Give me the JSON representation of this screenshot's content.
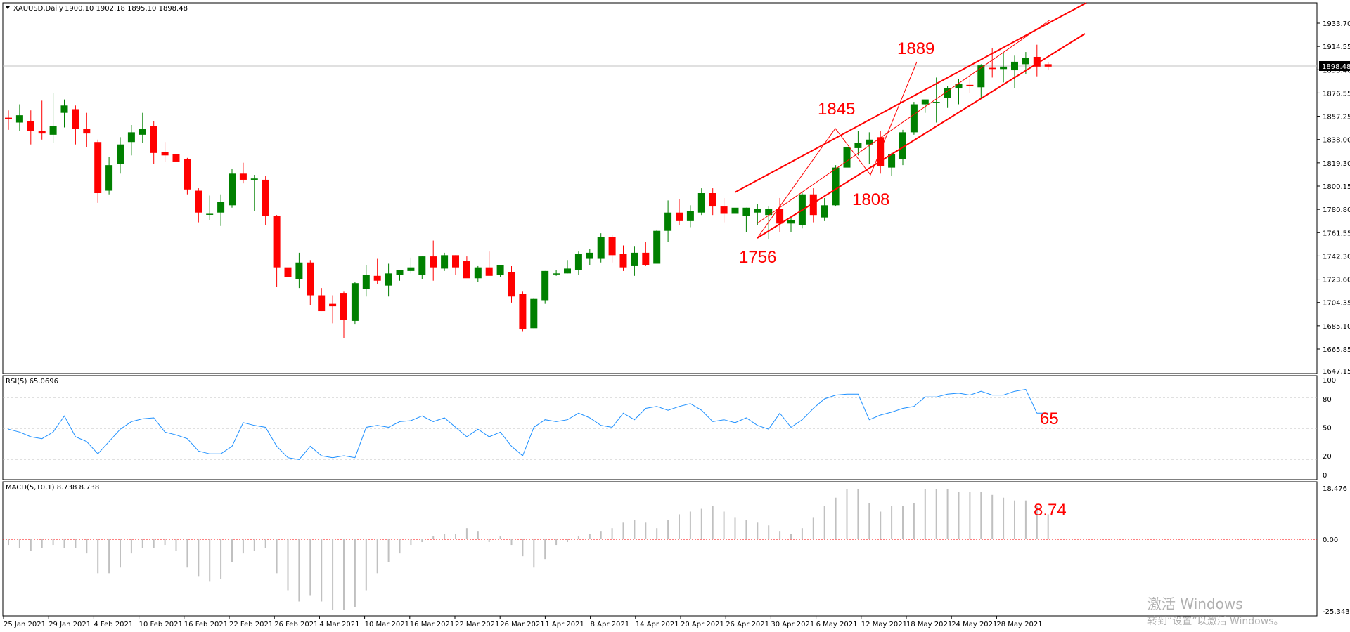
{
  "header": {
    "symbol": "XAUUSD,Daily",
    "ohlc": "1900.10 1902.18 1895.10 1898.48",
    "rsi_label": "RSI(5) 65.0696",
    "macd_label": "MACD(5,10,1) 8.738 8.738"
  },
  "price_axis": {
    "ticks": [
      "1933.70",
      "1914.55",
      "1895.40",
      "1876.55",
      "1857.25",
      "1838.00",
      "1819.30",
      "1800.15",
      "1780.80",
      "1761.55",
      "1742.30",
      "1723.60",
      "1704.35",
      "1685.10",
      "1665.85",
      "1647.15"
    ],
    "current_price": "1898.48"
  },
  "rsi_axis": {
    "ticks": [
      "100",
      "80",
      "50",
      "20",
      "0"
    ]
  },
  "macd_axis": {
    "ticks": [
      "18.476",
      "0.00",
      "-25.343"
    ]
  },
  "date_axis": {
    "ticks": [
      "25 Jan 2021",
      "29 Jan 2021",
      "4 Feb 2021",
      "10 Feb 2021",
      "16 Feb 2021",
      "22 Feb 2021",
      "26 Feb 2021",
      "4 Mar 2021",
      "10 Mar 2021",
      "16 Mar 2021",
      "22 Mar 2021",
      "26 Mar 2021",
      "1 Apr 2021",
      "8 Apr 2021",
      "14 Apr 2021",
      "20 Apr 2021",
      "26 Apr 2021",
      "30 Apr 2021",
      "6 May 2021",
      "12 May 2021",
      "18 May 2021",
      "24 May 2021",
      "28 May 2021"
    ]
  },
  "annotations": {
    "p1889": "1889",
    "p1845": "1845",
    "p1808": "1808",
    "p1756": "1756",
    "rsi_value": "65",
    "macd_value": "8.74"
  },
  "watermark": {
    "line1": "激活 Windows",
    "line2": "转到“设置”以激活 Windows。"
  },
  "colors": {
    "bull": "#008000",
    "bear": "#ff0000",
    "rsi_line": "#1e90ff",
    "macd_bar": "#c0c0c0",
    "channel": "#ff0000",
    "annotation": "#ff0000"
  },
  "chart_data": {
    "type": "candlestick",
    "symbol": "XAUUSD",
    "timeframe": "Daily",
    "ylim": [
      1647.15,
      1943.0
    ],
    "candles": [
      {
        "o": 1856,
        "h": 1862,
        "l": 1846,
        "c": 1855
      },
      {
        "o": 1852,
        "h": 1867,
        "l": 1845,
        "c": 1858
      },
      {
        "o": 1853,
        "h": 1862,
        "l": 1834,
        "c": 1845
      },
      {
        "o": 1845,
        "h": 1870,
        "l": 1838,
        "c": 1843
      },
      {
        "o": 1842,
        "h": 1876,
        "l": 1835,
        "c": 1849
      },
      {
        "o": 1860,
        "h": 1871,
        "l": 1848,
        "c": 1866
      },
      {
        "o": 1863,
        "h": 1866,
        "l": 1834,
        "c": 1847
      },
      {
        "o": 1847,
        "h": 1860,
        "l": 1832,
        "c": 1843
      },
      {
        "o": 1836,
        "h": 1838,
        "l": 1786,
        "c": 1794
      },
      {
        "o": 1796,
        "h": 1824,
        "l": 1793,
        "c": 1817
      },
      {
        "o": 1818,
        "h": 1840,
        "l": 1810,
        "c": 1834
      },
      {
        "o": 1836,
        "h": 1850,
        "l": 1825,
        "c": 1844
      },
      {
        "o": 1842,
        "h": 1860,
        "l": 1835,
        "c": 1847
      },
      {
        "o": 1849,
        "h": 1853,
        "l": 1818,
        "c": 1827
      },
      {
        "o": 1828,
        "h": 1836,
        "l": 1820,
        "c": 1825
      },
      {
        "o": 1826,
        "h": 1830,
        "l": 1815,
        "c": 1820
      },
      {
        "o": 1822,
        "h": 1823,
        "l": 1793,
        "c": 1797
      },
      {
        "o": 1796,
        "h": 1798,
        "l": 1770,
        "c": 1778
      },
      {
        "o": 1777,
        "h": 1792,
        "l": 1772,
        "c": 1777
      },
      {
        "o": 1778,
        "h": 1793,
        "l": 1767,
        "c": 1787
      },
      {
        "o": 1784,
        "h": 1814,
        "l": 1782,
        "c": 1810
      },
      {
        "o": 1810,
        "h": 1819,
        "l": 1802,
        "c": 1805
      },
      {
        "o": 1805,
        "h": 1809,
        "l": 1779,
        "c": 1806
      },
      {
        "o": 1805,
        "h": 1808,
        "l": 1768,
        "c": 1775
      },
      {
        "o": 1775,
        "h": 1776,
        "l": 1717,
        "c": 1733
      },
      {
        "o": 1733,
        "h": 1739,
        "l": 1720,
        "c": 1725
      },
      {
        "o": 1723,
        "h": 1745,
        "l": 1716,
        "c": 1737
      },
      {
        "o": 1737,
        "h": 1739,
        "l": 1702,
        "c": 1710
      },
      {
        "o": 1710,
        "h": 1716,
        "l": 1697,
        "c": 1697
      },
      {
        "o": 1703,
        "h": 1710,
        "l": 1687,
        "c": 1701
      },
      {
        "o": 1712,
        "h": 1713,
        "l": 1675,
        "c": 1690
      },
      {
        "o": 1689,
        "h": 1721,
        "l": 1686,
        "c": 1720
      },
      {
        "o": 1715,
        "h": 1735,
        "l": 1709,
        "c": 1727
      },
      {
        "o": 1726,
        "h": 1740,
        "l": 1719,
        "c": 1722
      },
      {
        "o": 1718,
        "h": 1736,
        "l": 1709,
        "c": 1728
      },
      {
        "o": 1727,
        "h": 1731,
        "l": 1722,
        "c": 1731
      },
      {
        "o": 1730,
        "h": 1741,
        "l": 1728,
        "c": 1733
      },
      {
        "o": 1727,
        "h": 1742,
        "l": 1723,
        "c": 1742
      },
      {
        "o": 1742,
        "h": 1755,
        "l": 1722,
        "c": 1733
      },
      {
        "o": 1732,
        "h": 1745,
        "l": 1730,
        "c": 1743
      },
      {
        "o": 1743,
        "h": 1743,
        "l": 1727,
        "c": 1733
      },
      {
        "o": 1738,
        "h": 1742,
        "l": 1726,
        "c": 1724
      },
      {
        "o": 1724,
        "h": 1734,
        "l": 1721,
        "c": 1733
      },
      {
        "o": 1733,
        "h": 1746,
        "l": 1728,
        "c": 1726
      },
      {
        "o": 1727,
        "h": 1735,
        "l": 1725,
        "c": 1735
      },
      {
        "o": 1729,
        "h": 1734,
        "l": 1704,
        "c": 1709
      },
      {
        "o": 1711,
        "h": 1713,
        "l": 1680,
        "c": 1682
      },
      {
        "o": 1683,
        "h": 1708,
        "l": 1683,
        "c": 1707
      },
      {
        "o": 1706,
        "h": 1730,
        "l": 1703,
        "c": 1730
      },
      {
        "o": 1728,
        "h": 1731,
        "l": 1726,
        "c": 1728
      },
      {
        "o": 1728,
        "h": 1739,
        "l": 1728,
        "c": 1732
      },
      {
        "o": 1731,
        "h": 1746,
        "l": 1727,
        "c": 1744
      },
      {
        "o": 1740,
        "h": 1748,
        "l": 1735,
        "c": 1745
      },
      {
        "o": 1740,
        "h": 1761,
        "l": 1737,
        "c": 1758
      },
      {
        "o": 1758,
        "h": 1760,
        "l": 1737,
        "c": 1743
      },
      {
        "o": 1744,
        "h": 1751,
        "l": 1730,
        "c": 1733
      },
      {
        "o": 1734,
        "h": 1750,
        "l": 1726,
        "c": 1745
      },
      {
        "o": 1745,
        "h": 1754,
        "l": 1734,
        "c": 1735
      },
      {
        "o": 1736,
        "h": 1764,
        "l": 1736,
        "c": 1763
      },
      {
        "o": 1763,
        "h": 1788,
        "l": 1754,
        "c": 1778
      },
      {
        "o": 1778,
        "h": 1789,
        "l": 1768,
        "c": 1771
      },
      {
        "o": 1771,
        "h": 1784,
        "l": 1766,
        "c": 1779
      },
      {
        "o": 1778,
        "h": 1798,
        "l": 1776,
        "c": 1794
      },
      {
        "o": 1794,
        "h": 1798,
        "l": 1776,
        "c": 1783
      },
      {
        "o": 1783,
        "h": 1790,
        "l": 1770,
        "c": 1777
      },
      {
        "o": 1777,
        "h": 1785,
        "l": 1774,
        "c": 1782
      },
      {
        "o": 1775,
        "h": 1782,
        "l": 1762,
        "c": 1782
      },
      {
        "o": 1778,
        "h": 1785,
        "l": 1768,
        "c": 1781
      },
      {
        "o": 1776,
        "h": 1783,
        "l": 1756,
        "c": 1781
      },
      {
        "o": 1781,
        "h": 1790,
        "l": 1762,
        "c": 1769
      },
      {
        "o": 1769,
        "h": 1774,
        "l": 1762,
        "c": 1772
      },
      {
        "o": 1768,
        "h": 1795,
        "l": 1765,
        "c": 1793
      },
      {
        "o": 1793,
        "h": 1798,
        "l": 1770,
        "c": 1776
      },
      {
        "o": 1774,
        "h": 1790,
        "l": 1771,
        "c": 1784
      },
      {
        "o": 1784,
        "h": 1817,
        "l": 1783,
        "c": 1815
      },
      {
        "o": 1815,
        "h": 1837,
        "l": 1813,
        "c": 1832
      },
      {
        "o": 1831,
        "h": 1845,
        "l": 1825,
        "c": 1835
      },
      {
        "o": 1834,
        "h": 1844,
        "l": 1818,
        "c": 1838
      },
      {
        "o": 1840,
        "h": 1845,
        "l": 1810,
        "c": 1816
      },
      {
        "o": 1815,
        "h": 1827,
        "l": 1808,
        "c": 1826
      },
      {
        "o": 1822,
        "h": 1846,
        "l": 1817,
        "c": 1844
      },
      {
        "o": 1844,
        "h": 1869,
        "l": 1842,
        "c": 1867
      },
      {
        "o": 1867,
        "h": 1870,
        "l": 1860,
        "c": 1871
      },
      {
        "o": 1869,
        "h": 1889,
        "l": 1852,
        "c": 1869
      },
      {
        "o": 1872,
        "h": 1882,
        "l": 1864,
        "c": 1880
      },
      {
        "o": 1880,
        "h": 1888,
        "l": 1867,
        "c": 1884
      },
      {
        "o": 1883,
        "h": 1888,
        "l": 1876,
        "c": 1882
      },
      {
        "o": 1881,
        "h": 1900,
        "l": 1872,
        "c": 1899
      },
      {
        "o": 1897,
        "h": 1913,
        "l": 1889,
        "c": 1896
      },
      {
        "o": 1896,
        "h": 1909,
        "l": 1885,
        "c": 1898
      },
      {
        "o": 1895,
        "h": 1907,
        "l": 1880,
        "c": 1902
      },
      {
        "o": 1900,
        "h": 1910,
        "l": 1892,
        "c": 1905
      },
      {
        "o": 1906,
        "h": 1916,
        "l": 1890,
        "c": 1898
      },
      {
        "o": 1900,
        "h": 1902,
        "l": 1895,
        "c": 1898
      }
    ],
    "rsi": [
      48,
      45,
      40,
      38,
      45,
      62,
      40,
      35,
      22,
      35,
      48,
      56,
      59,
      60,
      45,
      42,
      38,
      25,
      22,
      22,
      30,
      55,
      52,
      50,
      30,
      18,
      16,
      30,
      20,
      18,
      20,
      18,
      50,
      52,
      50,
      56,
      57,
      62,
      56,
      60,
      50,
      40,
      48,
      40,
      45,
      30,
      20,
      50,
      58,
      56,
      58,
      65,
      60,
      52,
      50,
      65,
      58,
      70,
      72,
      68,
      72,
      75,
      68,
      56,
      58,
      55,
      60,
      52,
      48,
      65,
      50,
      58,
      70,
      80,
      84,
      85,
      85,
      58,
      63,
      66,
      70,
      72,
      82,
      82,
      85,
      86,
      84,
      88,
      84,
      84,
      88,
      90,
      65,
      65
    ],
    "macd": [
      -2,
      -3,
      -4,
      -3,
      -2,
      -3,
      -3,
      -5,
      -12,
      -12,
      -10,
      -5,
      -3,
      -3,
      -2,
      -4,
      -10,
      -13,
      -15,
      -14,
      -8,
      -5,
      -4,
      -3,
      -12,
      -18,
      -22,
      -20,
      -22,
      -25,
      -25,
      -24,
      -18,
      -12,
      -8,
      -5,
      -2,
      -1,
      1,
      2,
      2,
      4,
      3,
      -1,
      1,
      -2,
      -6,
      -10,
      -7,
      -2,
      -1,
      1,
      2,
      3,
      4,
      6,
      7,
      6,
      4,
      7,
      9,
      10,
      11,
      12,
      10,
      8,
      7,
      6,
      5,
      3,
      2,
      4,
      8,
      12,
      15,
      18,
      18,
      13,
      10,
      12,
      12,
      13,
      18,
      18,
      18,
      17,
      17,
      17,
      16,
      15,
      14,
      14,
      12,
      9
    ]
  }
}
